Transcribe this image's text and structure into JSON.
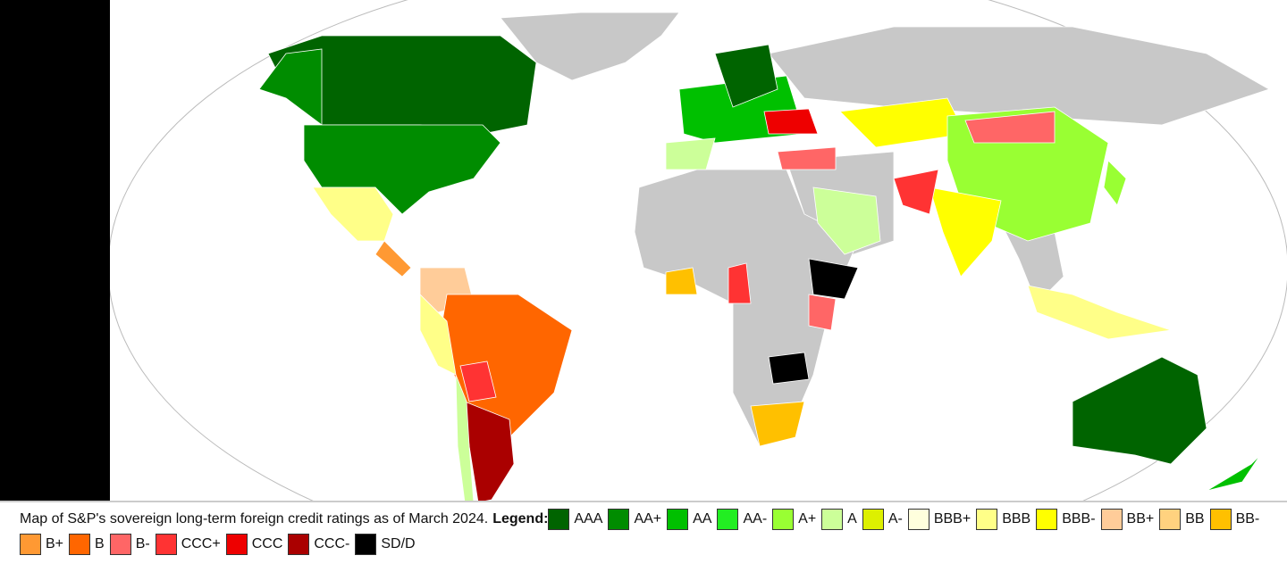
{
  "caption": "Map of S&P's sovereign long-term foreign credit ratings as of March 2024.",
  "legend_label": "Legend:",
  "legend": [
    {
      "label": "AAA",
      "color": "#006400"
    },
    {
      "label": "AA+",
      "color": "#008c00"
    },
    {
      "label": "AA",
      "color": "#00c000"
    },
    {
      "label": "AA-",
      "color": "#22ee22"
    },
    {
      "label": "A+",
      "color": "#99ff33"
    },
    {
      "label": "A",
      "color": "#ccff99"
    },
    {
      "label": "A-",
      "color": "#ddf000"
    },
    {
      "label": "BBB+",
      "color": "#ffffdd"
    },
    {
      "label": "BBB",
      "color": "#ffff88"
    },
    {
      "label": "BBB-",
      "color": "#ffff00"
    },
    {
      "label": "BB+",
      "color": "#ffcc99"
    },
    {
      "label": "BB",
      "color": "#ffd27f"
    },
    {
      "label": "BB-",
      "color": "#ffc000"
    },
    {
      "label": "B+",
      "color": "#ff9933"
    },
    {
      "label": "B",
      "color": "#ff6600"
    },
    {
      "label": "B-",
      "color": "#ff6666"
    },
    {
      "label": "CCC+",
      "color": "#ff3333"
    },
    {
      "label": "CCC",
      "color": "#ee0000"
    },
    {
      "label": "CCC-",
      "color": "#aa0000"
    },
    {
      "label": "SD/D",
      "color": "#000000"
    }
  ]
}
